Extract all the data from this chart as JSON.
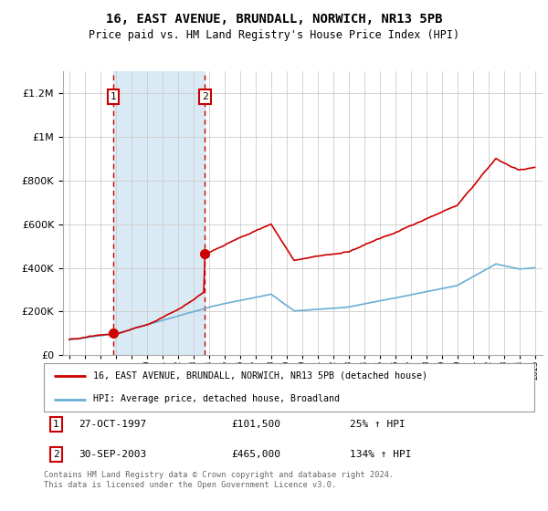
{
  "title": "16, EAST AVENUE, BRUNDALL, NORWICH, NR13 5PB",
  "subtitle": "Price paid vs. HM Land Registry's House Price Index (HPI)",
  "legend_line1": "16, EAST AVENUE, BRUNDALL, NORWICH, NR13 5PB (detached house)",
  "legend_line2": "HPI: Average price, detached house, Broadland",
  "sale1_date": 1997.82,
  "sale1_price": 101500,
  "sale2_date": 2003.75,
  "sale2_price": 465000,
  "footer": "Contains HM Land Registry data © Crown copyright and database right 2024.\nThis data is licensed under the Open Government Licence v3.0.",
  "red_color": "#cc0000",
  "blue_color": "#6aaed6",
  "shade_color": "#daeaf4",
  "ylim_max": 1300000,
  "xlim_start": 1994.6,
  "xlim_end": 2025.5
}
